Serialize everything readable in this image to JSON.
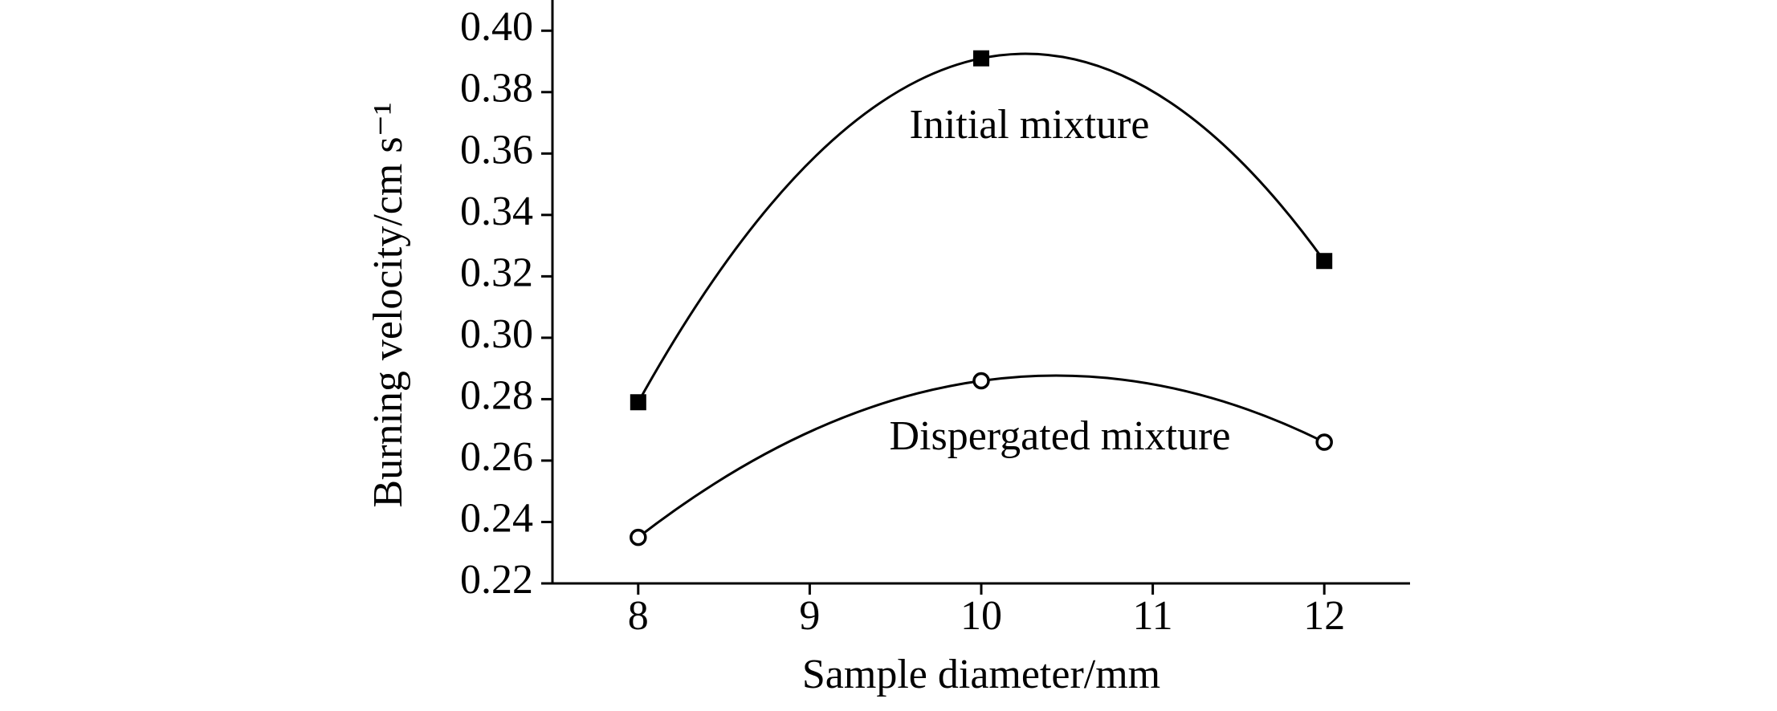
{
  "chart_data": {
    "type": "line",
    "x_label": "Sample diameter/mm",
    "y_label": "Burning velocity/cm s⁻¹",
    "x": [
      8,
      10,
      12
    ],
    "series": [
      {
        "name": "Initial mixture",
        "color": "#000000",
        "marker": "square",
        "values": [
          0.279,
          0.391,
          0.325
        ]
      },
      {
        "name": "Dispergated mixture",
        "color": "#000000",
        "marker": "open-circle",
        "values": [
          0.235,
          0.286,
          0.266
        ]
      }
    ],
    "xlim": [
      7.5,
      12.5
    ],
    "xticks": [
      8,
      9,
      10,
      11,
      12
    ],
    "ylim": [
      0.22,
      0.41
    ],
    "yticks": [
      {
        "value": 0.22,
        "label": "0.22"
      },
      {
        "value": 0.24,
        "label": "0.24"
      },
      {
        "value": 0.26,
        "label": "0.26"
      },
      {
        "value": 0.28,
        "label": "0.28"
      },
      {
        "value": 0.3,
        "label": "0.30"
      },
      {
        "value": 0.32,
        "label": "0.32"
      },
      {
        "value": 0.34,
        "label": "0.34"
      },
      {
        "value": 0.36,
        "label": "0.36"
      },
      {
        "value": 0.38,
        "label": "0.38"
      },
      {
        "value": 0.4,
        "label": "0.40"
      }
    ],
    "grid": false
  }
}
